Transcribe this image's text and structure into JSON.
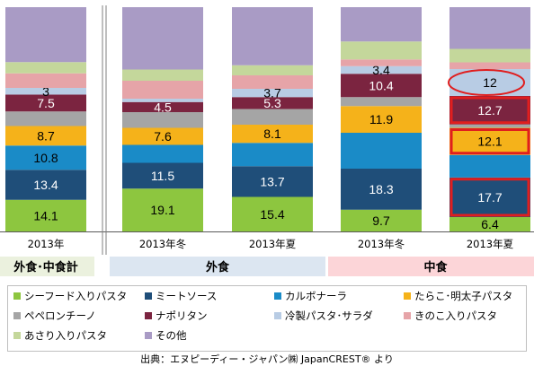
{
  "chart_data": {
    "type": "bar",
    "stacked": true,
    "normalized": true,
    "categories": [
      "2013年",
      "2013年冬",
      "2013年夏",
      "2013年冬",
      "2013年夏"
    ],
    "groups": [
      {
        "label": "外食･中食計",
        "bars": [
          0
        ]
      },
      {
        "label": "外食",
        "bars": [
          1,
          2
        ]
      },
      {
        "label": "中食",
        "bars": [
          3,
          4
        ]
      }
    ],
    "series": [
      {
        "name": "シーフード入りパスタ",
        "color": "#8dc63f",
        "values": [
          14.1,
          19.1,
          15.4,
          9.7,
          6.4
        ]
      },
      {
        "name": "ミートソース",
        "color": "#1f4e79",
        "values": [
          13.4,
          11.5,
          13.7,
          18.3,
          17.7
        ]
      },
      {
        "name": "カルボナーラ",
        "color": "#1a8bc7",
        "values": [
          10.8,
          8.0,
          10.4,
          16.0,
          10.0
        ]
      },
      {
        "name": "たらこ･明太子パスタ",
        "color": "#f5b21a",
        "values": [
          8.7,
          7.6,
          8.1,
          11.9,
          12.1
        ]
      },
      {
        "name": "ペペロンチーノ",
        "color": "#a5a5a5",
        "values": [
          6.5,
          7.0,
          7.0,
          4.0,
          1.5
        ]
      },
      {
        "name": "ナポリタン",
        "color": "#7b2440",
        "values": [
          7.5,
          4.5,
          5.3,
          10.4,
          12.7
        ]
      },
      {
        "name": "冷製パスタ･サラダ",
        "color": "#b8cce4",
        "values": [
          3,
          1.5,
          3.7,
          3.4,
          12
        ]
      },
      {
        "name": "きのこ入りパスタ",
        "color": "#e6a4a8",
        "values": [
          6.5,
          8.0,
          6.0,
          3.0,
          3.0
        ]
      },
      {
        "name": "あさり入りパスタ",
        "color": "#c4d79b",
        "values": [
          5.0,
          5.0,
          4.5,
          8.0,
          6.0
        ]
      },
      {
        "name": "その他",
        "color": "#a99bc5",
        "values": [
          24.5,
          27.8,
          25.9,
          15.3,
          18.6
        ]
      }
    ],
    "data_labels": [
      [
        "14.1",
        "13.4",
        "10.8",
        "8.7",
        "",
        "7.5",
        "3",
        "",
        "",
        ""
      ],
      [
        "19.1",
        "11.5",
        "",
        "7.6",
        "",
        "4.5",
        "",
        "",
        "",
        ""
      ],
      [
        "15.4",
        "13.7",
        "",
        "8.1",
        "",
        "5.3",
        "3.7",
        "",
        "",
        ""
      ],
      [
        "9.7",
        "18.3",
        "",
        "11.9",
        "",
        "10.4",
        "3.4",
        "",
        "",
        ""
      ],
      [
        "6.4",
        "17.7",
        "",
        "12.1",
        "",
        "12.7",
        "12",
        "",
        "",
        ""
      ]
    ],
    "highlighted": [
      [
        4,
        1
      ],
      [
        4,
        3
      ],
      [
        4,
        5
      ]
    ],
    "circled": [
      [
        4,
        6
      ]
    ],
    "ylim": [
      0,
      100
    ],
    "legend_position": "bottom"
  },
  "source_note": "出典：エヌピーディー・ジャパン㈱ JapanCREST® より"
}
